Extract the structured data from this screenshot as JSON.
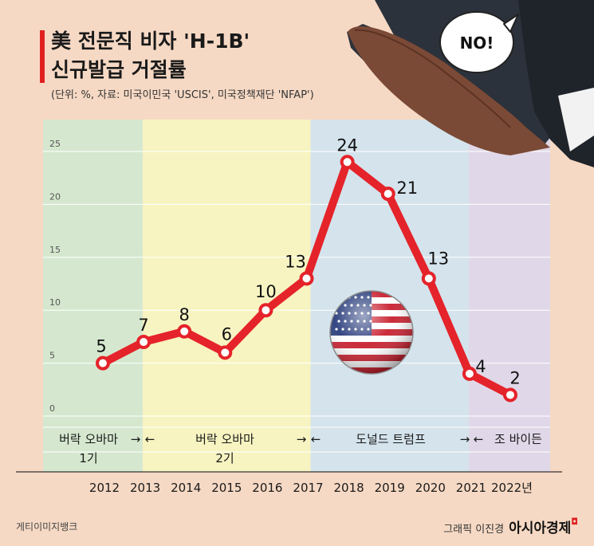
{
  "title_line1": "美 전문직 비자 'H-1B'",
  "title_line2": "신규발급 거절률",
  "subtitle": "(단위: %, 자료: 미국이민국 'USCIS', 미국정책재단 'NFAP')",
  "speech_bubble": "NO!",
  "footer_left": "게티이미지뱅크",
  "footer_credit": "그래픽 이진경",
  "footer_brand": "아시아경제",
  "colors": {
    "line": "#e5232a",
    "obama1": "#d5e8cf",
    "obama2": "#f0f0c6",
    "obama2b": "#f7f4c1",
    "trump": "#d4e3ec",
    "biden": "#e0d8e8",
    "background": "#f6d9c4"
  },
  "eras": [
    {
      "label_line1": "버락 오바마",
      "label_line2": "1기",
      "arrow": "→"
    },
    {
      "label_line1": "버락 오바마",
      "label_line2": "2기",
      "arrow_left": "←",
      "arrow_right": "→"
    },
    {
      "label_line1": "도널드 트럼프",
      "arrow_left": "←",
      "arrow_right": "→"
    },
    {
      "label_line1": "조 바이든",
      "arrow_left": "←"
    }
  ],
  "chart_data": {
    "type": "line",
    "title": "美 전문직 비자 'H-1B' 신규발급 거절률",
    "x": [
      "2012",
      "2013",
      "2014",
      "2015",
      "2016",
      "2017",
      "2018",
      "2019",
      "2020",
      "2021",
      "2022"
    ],
    "x_tick_labels": [
      "2012",
      "2013",
      "2014",
      "2015",
      "2016",
      "2017",
      "2018",
      "2019",
      "2020",
      "2021",
      "2022년"
    ],
    "series": [
      {
        "values": [
          5,
          7,
          8,
          6,
          10,
          13,
          24,
          21,
          13,
          4,
          2
        ]
      }
    ],
    "y_ticks": [
      0,
      5,
      10,
      15,
      20,
      25
    ],
    "ylim": [
      0,
      25
    ],
    "xlabel": "",
    "ylabel": "",
    "grid": true,
    "legend": "none"
  }
}
